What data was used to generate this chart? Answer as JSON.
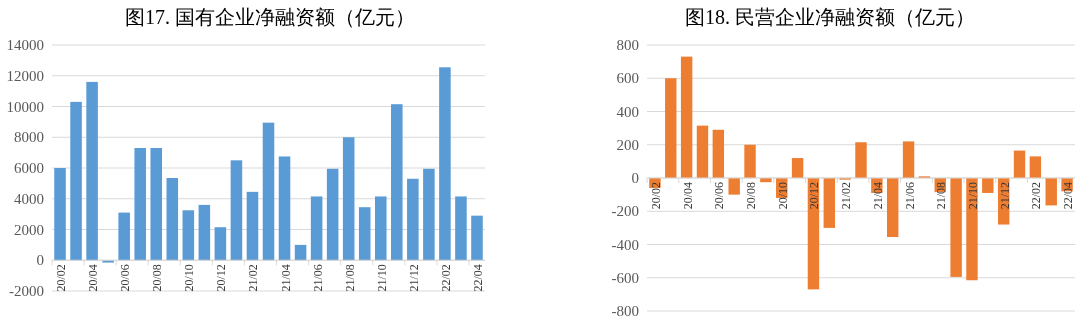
{
  "chart_data": [
    {
      "type": "bar",
      "title": "图17.  国有企业净融资额（亿元）",
      "color": "#5b9bd5",
      "grid": "y",
      "ylim": [
        -2000,
        14000
      ],
      "yticks": [
        -2000,
        0,
        2000,
        4000,
        6000,
        8000,
        10000,
        12000,
        14000
      ],
      "categories": [
        "20/02",
        null,
        "20/04",
        null,
        "20/06",
        null,
        "20/08",
        null,
        "20/10",
        null,
        "20/12",
        null,
        "21/02",
        null,
        "21/04",
        null,
        "21/06",
        null,
        "21/08",
        null,
        "21/10",
        null,
        "21/12",
        null,
        "22/02",
        null,
        "22/04"
      ],
      "values": [
        6000,
        10300,
        11600,
        -150,
        3100,
        7300,
        7300,
        5350,
        3250,
        3600,
        2150,
        6500,
        4450,
        8950,
        6750,
        1000,
        4150,
        5950,
        8000,
        3450,
        4150,
        10150,
        5300,
        5950,
        12550,
        4150,
        2900
      ]
    },
    {
      "type": "bar",
      "title": "图18.  民营企业净融资额（亿元）",
      "color": "#ed7d31",
      "grid": "y",
      "ylim": [
        -800,
        800
      ],
      "yticks": [
        -800,
        -600,
        -400,
        -200,
        0,
        200,
        400,
        600,
        800
      ],
      "categories": [
        "20/02",
        null,
        "20/04",
        null,
        "20/06",
        null,
        "20/08",
        null,
        "20/10",
        null,
        "20/12",
        null,
        "21/02",
        null,
        "21/04",
        null,
        "21/06",
        null,
        "21/08",
        null,
        "21/10",
        null,
        "21/12",
        null,
        "22/02",
        null,
        "22/04"
      ],
      "values": [
        -60,
        600,
        730,
        315,
        290,
        -100,
        200,
        -25,
        -120,
        120,
        -670,
        -300,
        -10,
        215,
        -90,
        -355,
        220,
        10,
        -85,
        -595,
        -615,
        -90,
        -280,
        165,
        130,
        -165,
        -80
      ]
    }
  ]
}
